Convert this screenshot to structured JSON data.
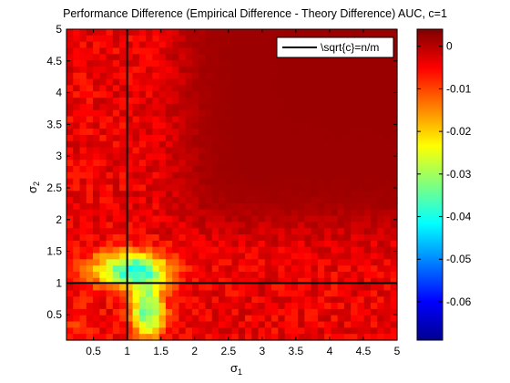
{
  "chart_data": {
    "type": "heatmap",
    "title": "Performance Difference (Empirical Difference - Theory Difference) AUC, c=1",
    "xlabel": "σ",
    "xlabel_sub": "1",
    "ylabel": "σ",
    "ylabel_sub": "2",
    "xlim": [
      0.1,
      5
    ],
    "ylim": [
      0.1,
      5
    ],
    "xticks": [
      0.5,
      1,
      1.5,
      2,
      2.5,
      3,
      3.5,
      4,
      4.5,
      5
    ],
    "xtick_labels": [
      "0.5",
      "1",
      "1.5",
      "2",
      "2.5",
      "3",
      "3.5",
      "4",
      "4.5",
      "5"
    ],
    "yticks": [
      0.5,
      1,
      1.5,
      2,
      2.5,
      3,
      3.5,
      4,
      4.5,
      5
    ],
    "ytick_labels": [
      "0.5",
      "1",
      "1.5",
      "2",
      "2.5",
      "3",
      "3.5",
      "4",
      "4.5",
      "5"
    ],
    "colorbar": {
      "clim": [
        -0.069,
        0.004
      ],
      "ticks": [
        0,
        -0.01,
        -0.02,
        -0.03,
        -0.04,
        -0.05,
        -0.06
      ],
      "tick_labels": [
        "0",
        "-0.01",
        "-0.02",
        "-0.03",
        "-0.04",
        "-0.05",
        "-0.06"
      ],
      "colormap": "jet"
    },
    "grid_summary": {
      "high_region_value": 0.002,
      "ridge_value": -0.004,
      "sigma1_boundary": 1.8,
      "sigma2_boundary": 1.9,
      "min_value_near": [
        1.05,
        1.2
      ],
      "min_value": -0.045
    },
    "reference_lines": {
      "legend_label": "\\sqrt{c}=n/m",
      "vertical_x": 1,
      "horizontal_y": 1
    },
    "legend_position": "top-right",
    "grid": false
  }
}
